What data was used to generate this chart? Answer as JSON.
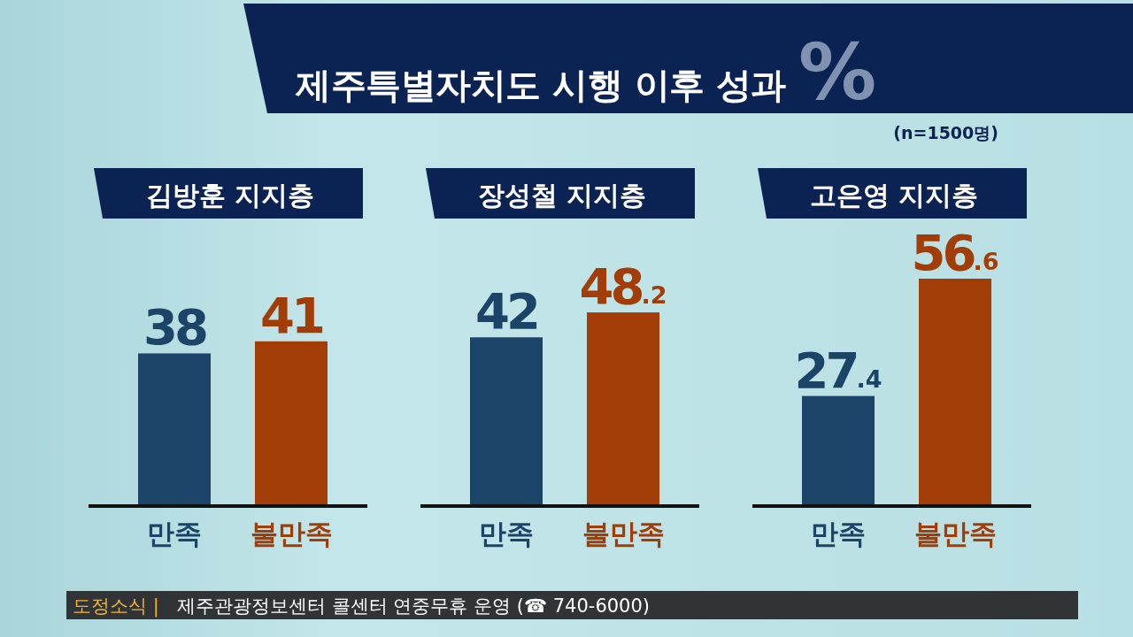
{
  "chart_data": [
    {
      "type": "other",
      "title": "제주특별자치도 시행 이후 성과",
      "annotations": [
        "%",
        "(n=1500명)",
        "도정소식 |",
        "제주관광정보센터 콜센터 연중무휴 운영 (☎ 740-6000)"
      ]
    },
    {
      "type": "bar",
      "title": "김방훈 지지층",
      "categories": [
        "만족",
        "불만족"
      ],
      "values": [
        38,
        41
      ],
      "colors": [
        "#1c4468",
        "#a33d07"
      ],
      "data_labels": true
    },
    {
      "type": "bar",
      "title": "장성철 지지층",
      "categories": [
        "만족",
        "불만족"
      ],
      "values": [
        42,
        48.2
      ],
      "colors": [
        "#1c4468",
        "#a33d07"
      ],
      "data_labels": true
    },
    {
      "type": "bar",
      "title": "고은영 지지층",
      "categories": [
        "만족",
        "불만족"
      ],
      "values": [
        27.4,
        56.6
      ],
      "colors": [
        "#1c4468",
        "#a33d07"
      ],
      "data_labels": true
    }
  ]
}
